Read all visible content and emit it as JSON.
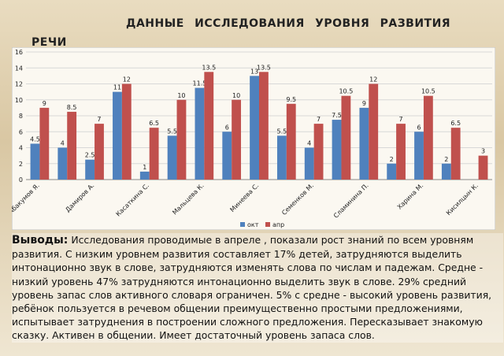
{
  "title": "ДАННЫЕ ИССЛЕДОВАНИЯ УРОВНЯ РАЗВИТИЯ РЕЧИ",
  "chart_data": {
    "type": "bar",
    "categories": [
      "Абакумов Я.",
      null,
      "Дамиров А.",
      null,
      "Касаткина С.",
      null,
      "Мальцева К.",
      null,
      "Минеева С.",
      null,
      "Семенков М.",
      null,
      "Сламинина П.",
      null,
      "Харина М.",
      null,
      "Кисилцын К."
    ],
    "series": [
      {
        "name": "окт",
        "color": "#4f81bd",
        "values": [
          4.5,
          4,
          2.5,
          11,
          1,
          5.5,
          11.5,
          6,
          13,
          5.5,
          4,
          7.5,
          9,
          2,
          6,
          2,
          null
        ]
      },
      {
        "name": "апр",
        "color": "#c0504d",
        "values": [
          9,
          8.5,
          7,
          12,
          6.5,
          10,
          13.5,
          10,
          13.5,
          9.5,
          7,
          10.5,
          12,
          7,
          10.5,
          6.5,
          3
        ]
      }
    ],
    "ylim": [
      0,
      16
    ],
    "yticks": [
      0,
      2,
      4,
      6,
      8,
      10,
      12,
      14,
      16
    ],
    "grid": true,
    "legend": "bottom"
  },
  "conclusion": {
    "heading": "Выводы:",
    "text": "Исследования проводимые в апреле , показали рост знаний по всем уровням развития. С низким уровнем развития составляет 17% детей, затрудняются выделить интонационно звук в слове, затрудняются изменять слова по числам и падежам. Средне - низкий уровень 47% затрудняются интонационно выделить звук в слове. 29% средний уровень запас слов активного словаря ограничен. 5% с средне - высокий уровень развития, ребёнок пользуется в речевом общении преимущественно простыми предложениями,  испытывает затруднения в построении сложного предложения. Пересказывает знакомую сказку. Активен в общении. Имеет достаточный уровень запаса слов."
  }
}
